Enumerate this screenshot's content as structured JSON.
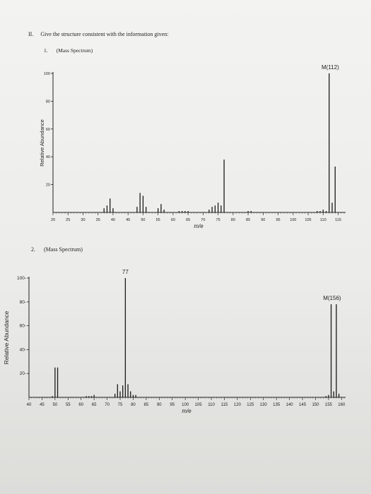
{
  "question": {
    "number": "II.",
    "text": "Give the structure consistent with the information given:"
  },
  "problems": [
    {
      "number": "1.",
      "label": "(Mass Spectrum)"
    },
    {
      "number": "2.",
      "label": "(Mass Spectrum)"
    }
  ],
  "chart_data": [
    {
      "type": "bar",
      "title": "",
      "xlabel": "m/e",
      "ylabel": "Relative Abundance",
      "xlim": [
        20,
        117
      ],
      "ylim": [
        0,
        100
      ],
      "x_ticks": [
        20,
        25,
        30,
        35,
        40,
        45,
        50,
        55,
        60,
        65,
        70,
        75,
        80,
        85,
        90,
        95,
        100,
        105,
        110,
        115
      ],
      "y_ticks": [
        20,
        40,
        60,
        80,
        100
      ],
      "y_tick_labels": [
        "20",
        "40",
        "60",
        "80",
        "100"
      ],
      "annotations": [
        {
          "text": "M(112)",
          "x": 112
        }
      ],
      "peaks": [
        {
          "x": 37,
          "y": 3
        },
        {
          "x": 38,
          "y": 5
        },
        {
          "x": 39,
          "y": 10
        },
        {
          "x": 40,
          "y": 3
        },
        {
          "x": 48,
          "y": 4
        },
        {
          "x": 49,
          "y": 14
        },
        {
          "x": 50,
          "y": 12
        },
        {
          "x": 51,
          "y": 4
        },
        {
          "x": 55,
          "y": 3
        },
        {
          "x": 56,
          "y": 6
        },
        {
          "x": 57,
          "y": 2
        },
        {
          "x": 62,
          "y": 1
        },
        {
          "x": 63,
          "y": 1
        },
        {
          "x": 64,
          "y": 1
        },
        {
          "x": 65,
          "y": 1
        },
        {
          "x": 72,
          "y": 2
        },
        {
          "x": 73,
          "y": 4
        },
        {
          "x": 74,
          "y": 5
        },
        {
          "x": 75,
          "y": 7
        },
        {
          "x": 76,
          "y": 5
        },
        {
          "x": 77,
          "y": 38
        },
        {
          "x": 85,
          "y": 1
        },
        {
          "x": 86,
          "y": 1
        },
        {
          "x": 108,
          "y": 1
        },
        {
          "x": 109,
          "y": 1
        },
        {
          "x": 110,
          "y": 2
        },
        {
          "x": 111,
          "y": 1
        },
        {
          "x": 112,
          "y": 100
        },
        {
          "x": 113,
          "y": 7
        },
        {
          "x": 114,
          "y": 33
        }
      ]
    },
    {
      "type": "bar",
      "title": "",
      "xlabel": "m/e",
      "ylabel": "Relative Abundance",
      "xlim": [
        40,
        161
      ],
      "ylim": [
        0,
        100
      ],
      "x_ticks": [
        40,
        45,
        50,
        55,
        60,
        65,
        70,
        75,
        80,
        85,
        90,
        95,
        100,
        105,
        110,
        115,
        120,
        125,
        130,
        135,
        140,
        145,
        150,
        155,
        160
      ],
      "y_ticks": [
        20,
        40,
        60,
        80,
        100
      ],
      "y_tick_labels": [
        "20-",
        "40-",
        "60-",
        "80-",
        "100-"
      ],
      "annotations": [
        {
          "text": "77",
          "x": 77
        },
        {
          "text": "M(156)",
          "x": 156
        }
      ],
      "peaks": [
        {
          "x": 49,
          "y": 1
        },
        {
          "x": 50,
          "y": 25
        },
        {
          "x": 51,
          "y": 25
        },
        {
          "x": 62,
          "y": 1
        },
        {
          "x": 63,
          "y": 1
        },
        {
          "x": 64,
          "y": 1
        },
        {
          "x": 65,
          "y": 2
        },
        {
          "x": 73,
          "y": 3
        },
        {
          "x": 74,
          "y": 11
        },
        {
          "x": 75,
          "y": 5
        },
        {
          "x": 76,
          "y": 10
        },
        {
          "x": 77,
          "y": 100
        },
        {
          "x": 78,
          "y": 11
        },
        {
          "x": 79,
          "y": 5
        },
        {
          "x": 80,
          "y": 2
        },
        {
          "x": 81,
          "y": 2
        },
        {
          "x": 154,
          "y": 1
        },
        {
          "x": 155,
          "y": 2
        },
        {
          "x": 156,
          "y": 78
        },
        {
          "x": 157,
          "y": 5
        },
        {
          "x": 158,
          "y": 78
        },
        {
          "x": 159,
          "y": 3
        }
      ]
    }
  ]
}
